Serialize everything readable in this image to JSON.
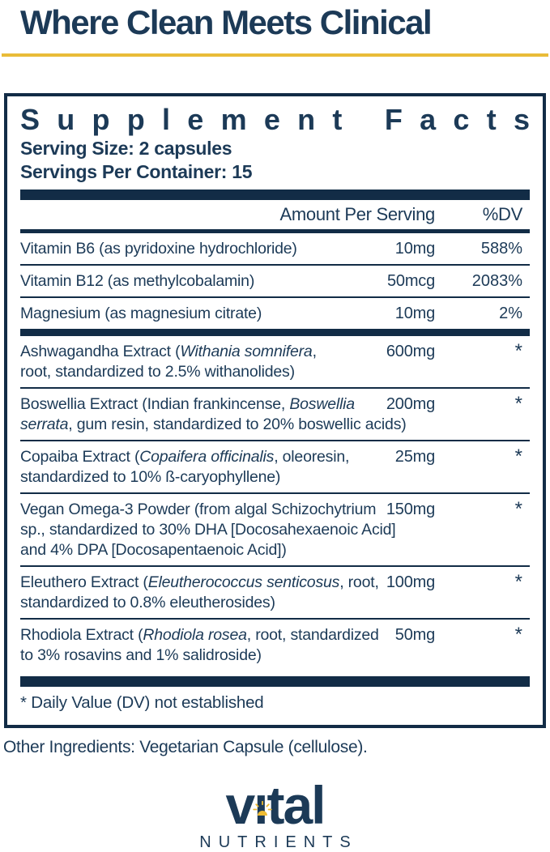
{
  "colors": {
    "navy": "#1c3a57",
    "bar_navy": "#122c46",
    "yellow": "#e9bc38",
    "logo_sun": "#eebb33"
  },
  "header": {
    "tagline": "Where Clean Meets Clinical"
  },
  "supplement_facts": {
    "title": "Supplement Facts",
    "serving_size": "Serving Size: 2 capsules",
    "servings_per_container": "Servings Per Container: 15",
    "columns": {
      "amount": "Amount Per Serving",
      "dv": "%DV"
    },
    "rows": [
      {
        "name_lines": [
          [
            {
              "t": "Vitamin B6 (as pyridoxine hydrochloride)",
              "i": false
            }
          ]
        ],
        "amount": "10mg",
        "dv": "588%",
        "divider": "thin"
      },
      {
        "name_lines": [
          [
            {
              "t": "Vitamin B12 (as methylcobalamin)",
              "i": false
            }
          ]
        ],
        "amount": "50mcg",
        "dv": "2083%",
        "divider": "thin"
      },
      {
        "name_lines": [
          [
            {
              "t": "Magnesium (as magnesium citrate)",
              "i": false
            }
          ]
        ],
        "amount": "10mg",
        "dv": "2%",
        "divider": "thick"
      },
      {
        "name_lines": [
          [
            {
              "t": "Ashwagandha Extract (",
              "i": false
            },
            {
              "t": "Withania somnifera",
              "i": true
            },
            {
              "t": ",",
              "i": false
            }
          ],
          [
            {
              "t": "root, standardized to 2.5% withanolides)",
              "i": false
            }
          ]
        ],
        "amount": "600mg",
        "dv": "*",
        "divider": "thin"
      },
      {
        "name_lines": [
          [
            {
              "t": "Boswellia Extract (Indian frankincense, ",
              "i": false
            },
            {
              "t": "Boswellia",
              "i": true
            }
          ],
          [
            {
              "t": "serrata",
              "i": true
            },
            {
              "t": ", gum resin, standardized to 20% boswellic acids)",
              "i": false
            }
          ]
        ],
        "amount": "200mg",
        "dv": "*",
        "divider": "thin"
      },
      {
        "name_lines": [
          [
            {
              "t": "Copaiba Extract (",
              "i": false
            },
            {
              "t": "Copaifera officinalis",
              "i": true
            },
            {
              "t": ", oleoresin,",
              "i": false
            }
          ],
          [
            {
              "t": "standardized to 10% ß-caryophyllene)",
              "i": false
            }
          ]
        ],
        "amount": "25mg",
        "dv": "*",
        "divider": "thin"
      },
      {
        "name_lines": [
          [
            {
              "t": "Vegan Omega-3 Powder (from algal Schizochytrium",
              "i": false
            }
          ],
          [
            {
              "t": "sp., standardized to 30% DHA [Docosahexaenoic Acid]",
              "i": false
            }
          ],
          [
            {
              "t": "and 4% DPA [Docosapentaenoic Acid])",
              "i": false
            }
          ]
        ],
        "amount": "150mg",
        "dv": "*",
        "divider": "thin"
      },
      {
        "name_lines": [
          [
            {
              "t": "Eleuthero Extract (",
              "i": false
            },
            {
              "t": "Eleutherococcus senticosus",
              "i": true
            },
            {
              "t": ", root,",
              "i": false
            }
          ],
          [
            {
              "t": "standardized to 0.8% eleutherosides)",
              "i": false
            }
          ]
        ],
        "amount": "100mg",
        "dv": "*",
        "divider": "thin"
      },
      {
        "name_lines": [
          [
            {
              "t": "Rhodiola Extract (",
              "i": false
            },
            {
              "t": "Rhodiola rosea",
              "i": true
            },
            {
              "t": ", root, standardized",
              "i": false
            }
          ],
          [
            {
              "t": "to 3% rosavins and 1% salidroside)",
              "i": false
            }
          ]
        ],
        "amount": "50mg",
        "dv": "*",
        "divider": "none"
      }
    ],
    "footnote": "* Daily Value (DV) not established"
  },
  "other_ingredients": "Other Ingredients: Vegetarian Capsule (cellulose).",
  "logo": {
    "brand": "vital",
    "subtext": "NUTRIENTS"
  }
}
